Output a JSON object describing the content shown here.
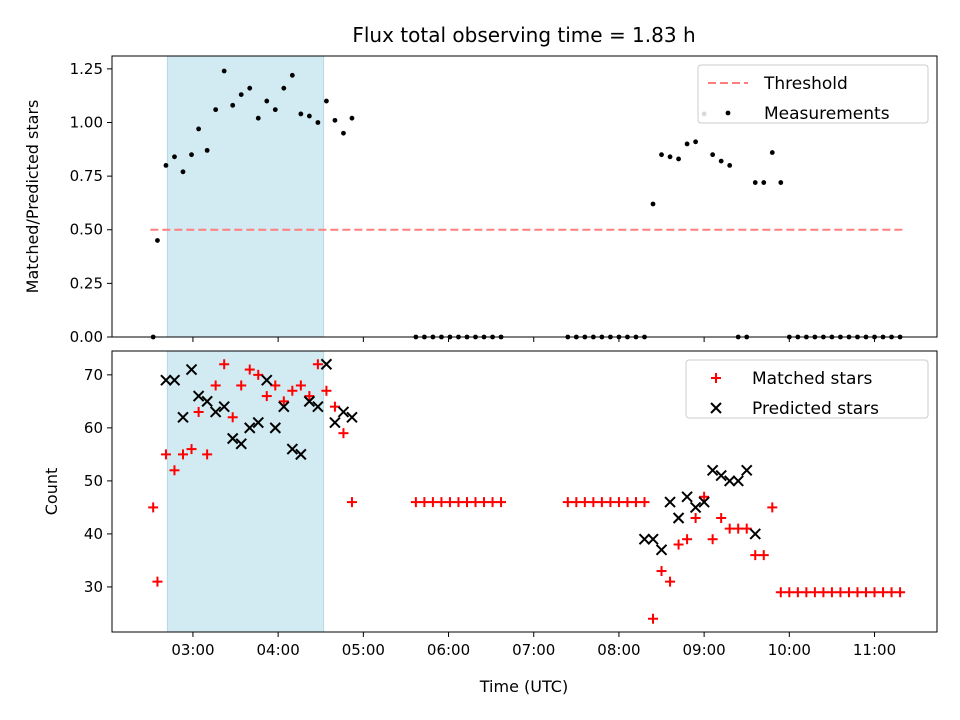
{
  "chart_data": {
    "title": "Flux total observing time = 1.83 h",
    "xlabel": "Time (UTC)",
    "x_tick_labels": [
      "03:00",
      "04:00",
      "05:00",
      "06:00",
      "07:00",
      "08:00",
      "09:00",
      "10:00",
      "11:00"
    ],
    "x_tick_times": [
      "03:00",
      "04:00",
      "05:00",
      "06:00",
      "07:00",
      "08:00",
      "09:00",
      "10:00",
      "11:00"
    ],
    "xlim": [
      "02:03",
      "11:44"
    ],
    "shaded_interval": [
      "02:42",
      "04:32"
    ],
    "shade_color": "#add8e6",
    "panels": [
      {
        "type": "scatter",
        "ylabel": "Matched/Predicted stars",
        "ylim": [
          0,
          1.31
        ],
        "y_ticks": [
          0.0,
          0.25,
          0.5,
          0.75,
          1.0,
          1.25
        ],
        "y_tick_labels": [
          "0.00",
          "0.25",
          "0.50",
          "0.75",
          "1.00",
          "1.25"
        ],
        "legend": {
          "placement": "top-right",
          "entries": [
            "Threshold",
            "Measurements"
          ]
        },
        "threshold": {
          "name": "Threshold",
          "value": 0.5,
          "x_range": [
            "02:30",
            "11:20"
          ],
          "color": "#ff7f7f",
          "style": "dashed"
        },
        "series": [
          {
            "name": "Measurements",
            "color": "#000000",
            "marker": "dot",
            "x": [
              "02:32",
              "02:35",
              "02:41",
              "02:47",
              "02:53",
              "02:59",
              "03:04",
              "03:10",
              "03:16",
              "03:22",
              "03:28",
              "03:34",
              "03:40",
              "03:46",
              "03:52",
              "03:58",
              "04:04",
              "04:10",
              "04:16",
              "04:22",
              "04:28",
              "04:34",
              "04:40",
              "04:46",
              "04:52",
              "05:37",
              "05:43",
              "05:49",
              "05:55",
              "06:01",
              "06:07",
              "06:13",
              "06:19",
              "06:25",
              "06:31",
              "06:37",
              "07:24",
              "07:30",
              "07:36",
              "07:42",
              "07:48",
              "07:54",
              "08:00",
              "08:06",
              "08:12",
              "08:18",
              "08:24",
              "08:30",
              "08:36",
              "08:42",
              "08:48",
              "08:54",
              "09:00",
              "09:06",
              "09:12",
              "09:18",
              "09:24",
              "09:30",
              "09:36",
              "09:42",
              "09:48",
              "09:54",
              "10:00",
              "10:06",
              "10:12",
              "10:18",
              "10:24",
              "10:30",
              "10:36",
              "10:42",
              "10:48",
              "10:54",
              "11:00",
              "11:06",
              "11:12",
              "11:18"
            ],
            "y": [
              0.0,
              0.45,
              0.8,
              0.84,
              0.77,
              0.85,
              0.97,
              0.87,
              1.06,
              1.24,
              1.08,
              1.13,
              1.16,
              1.02,
              1.1,
              1.06,
              1.16,
              1.22,
              1.04,
              1.03,
              1.0,
              1.1,
              1.01,
              0.95,
              1.02,
              0.0,
              0.0,
              0.0,
              0.0,
              0.0,
              0.0,
              0.0,
              0.0,
              0.0,
              0.0,
              0.0,
              0.0,
              0.0,
              0.0,
              0.0,
              0.0,
              0.0,
              0.0,
              0.0,
              0.0,
              0.0,
              0.62,
              0.85,
              0.84,
              0.83,
              0.9,
              0.91,
              1.04,
              0.85,
              0.82,
              0.8,
              0.0,
              0.0,
              0.72,
              0.72,
              0.86,
              0.72,
              0.0,
              0.0,
              0.0,
              0.0,
              0.0,
              0.0,
              0.0,
              0.0,
              0.0,
              0.0,
              0.0,
              0.0,
              0.0,
              0.0
            ]
          }
        ]
      },
      {
        "type": "scatter",
        "ylabel": "Count",
        "ylim": [
          21.5,
          74.5
        ],
        "y_ticks": [
          30,
          40,
          50,
          60,
          70
        ],
        "y_tick_labels": [
          "30",
          "40",
          "50",
          "60",
          "70"
        ],
        "legend": {
          "placement": "top-right",
          "entries": [
            "Matched stars",
            "Predicted stars"
          ]
        },
        "series": [
          {
            "name": "Matched stars",
            "color": "#ff0000",
            "marker": "plus",
            "x": [
              "02:32",
              "02:35",
              "02:41",
              "02:47",
              "02:53",
              "02:59",
              "03:04",
              "03:10",
              "03:16",
              "03:22",
              "03:28",
              "03:34",
              "03:40",
              "03:46",
              "03:52",
              "03:58",
              "04:04",
              "04:10",
              "04:16",
              "04:22",
              "04:28",
              "04:34",
              "04:40",
              "04:46",
              "04:52",
              "05:37",
              "05:43",
              "05:49",
              "05:55",
              "06:01",
              "06:07",
              "06:13",
              "06:19",
              "06:25",
              "06:31",
              "06:37",
              "07:24",
              "07:30",
              "07:36",
              "07:42",
              "07:48",
              "07:54",
              "08:00",
              "08:06",
              "08:12",
              "08:18",
              "08:24",
              "08:30",
              "08:36",
              "08:42",
              "08:48",
              "08:54",
              "09:00",
              "09:06",
              "09:12",
              "09:18",
              "09:24",
              "09:30",
              "09:36",
              "09:42",
              "09:48",
              "09:54",
              "10:00",
              "10:06",
              "10:12",
              "10:18",
              "10:24",
              "10:30",
              "10:36",
              "10:42",
              "10:48",
              "10:54",
              "11:00",
              "11:06",
              "11:12",
              "11:18"
            ],
            "y": [
              45,
              31,
              55,
              52,
              55,
              56,
              63,
              55,
              68,
              72,
              62,
              68,
              71,
              70,
              66,
              68,
              65,
              67,
              68,
              66,
              72,
              67,
              64,
              59,
              46,
              46,
              46,
              46,
              46,
              46,
              46,
              46,
              46,
              46,
              46,
              46,
              46,
              46,
              46,
              46,
              46,
              46,
              46,
              46,
              46,
              46,
              24,
              33,
              31,
              38,
              39,
              43,
              47,
              39,
              43,
              41,
              41,
              41,
              36,
              36,
              45,
              29,
              29,
              29,
              29,
              29,
              29,
              29,
              29,
              29,
              29,
              29,
              29,
              29,
              29,
              29
            ]
          },
          {
            "name": "Predicted stars",
            "color": "#000000",
            "marker": "x",
            "x": [
              "02:41",
              "02:47",
              "02:53",
              "02:59",
              "03:04",
              "03:10",
              "03:16",
              "03:22",
              "03:28",
              "03:34",
              "03:40",
              "03:46",
              "03:52",
              "03:58",
              "04:04",
              "04:10",
              "04:16",
              "04:22",
              "04:28",
              "04:34",
              "04:40",
              "04:46",
              "04:52",
              "08:18",
              "08:24",
              "08:30",
              "08:36",
              "08:42",
              "08:48",
              "08:54",
              "09:00",
              "09:06",
              "09:12",
              "09:18",
              "09:24",
              "09:30",
              "09:36"
            ],
            "y": [
              69,
              69,
              62,
              71,
              66,
              65,
              63,
              64,
              58,
              57,
              60,
              61,
              69,
              60,
              64,
              56,
              55,
              65,
              64,
              72,
              61,
              63,
              62,
              39,
              39,
              37,
              46,
              43,
              47,
              45,
              46,
              52,
              51,
              50,
              50,
              52,
              40
            ]
          }
        ]
      }
    ]
  }
}
